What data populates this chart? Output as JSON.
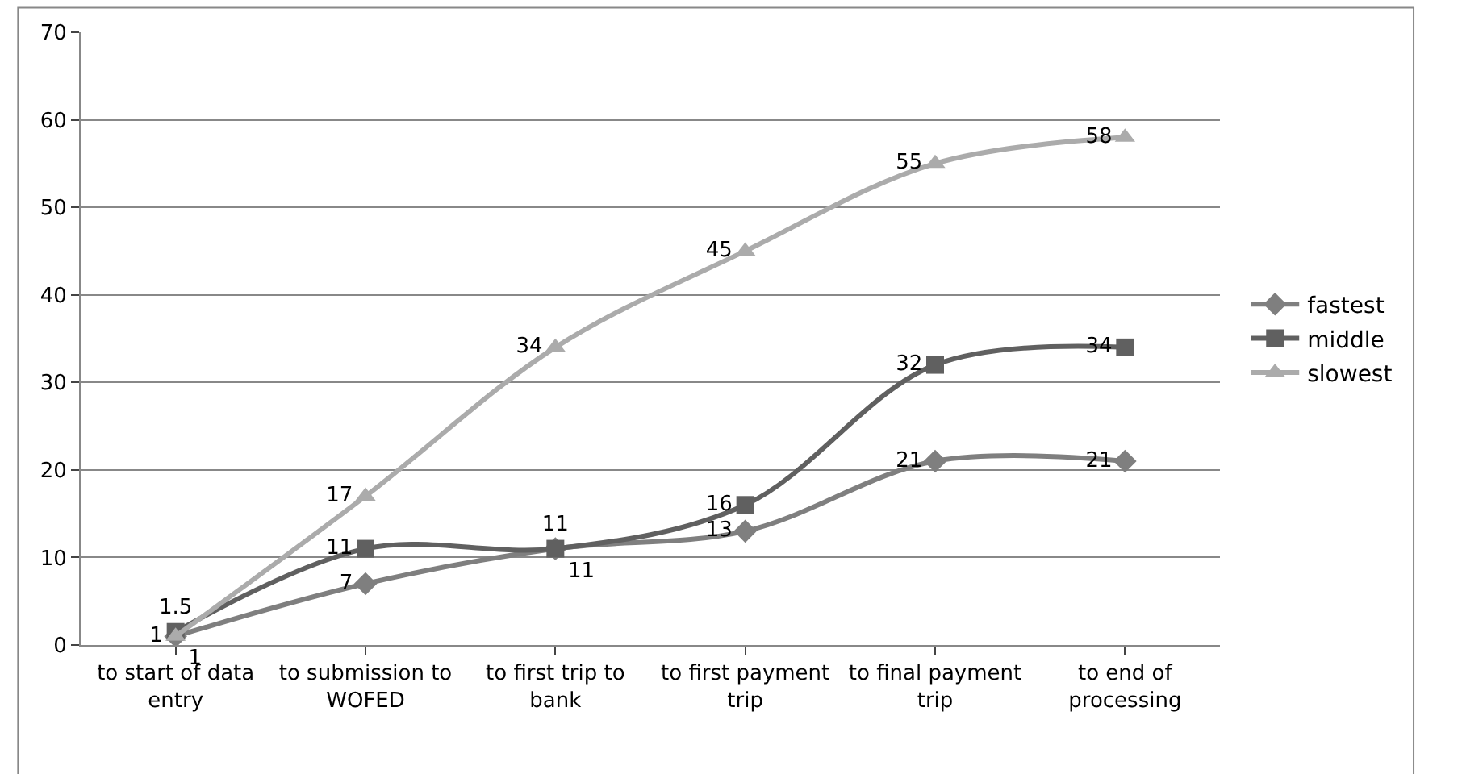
{
  "chart_data": {
    "type": "line",
    "categories": [
      "to start of data entry",
      "to submission to WOFED",
      "to first trip to bank",
      "to first payment trip",
      "to final payment trip",
      "to end of processing"
    ],
    "series": [
      {
        "name": "fastest",
        "color": "#7f7f7f",
        "marker": "diamond",
        "values": [
          1,
          7,
          11,
          13,
          21,
          21
        ]
      },
      {
        "name": "middle",
        "color": "#606060",
        "marker": "square",
        "values": [
          1.5,
          11,
          11,
          16,
          32,
          34
        ]
      },
      {
        "name": "slowest",
        "color": "#ababab",
        "marker": "triangle",
        "values": [
          1,
          17,
          34,
          45,
          55,
          58
        ]
      }
    ],
    "ylim": [
      0,
      70
    ],
    "yticks": [
      0,
      10,
      20,
      30,
      40,
      50,
      60,
      70
    ],
    "grid": "y",
    "legend": "right",
    "data_labels": true,
    "line_style": "solid"
  }
}
